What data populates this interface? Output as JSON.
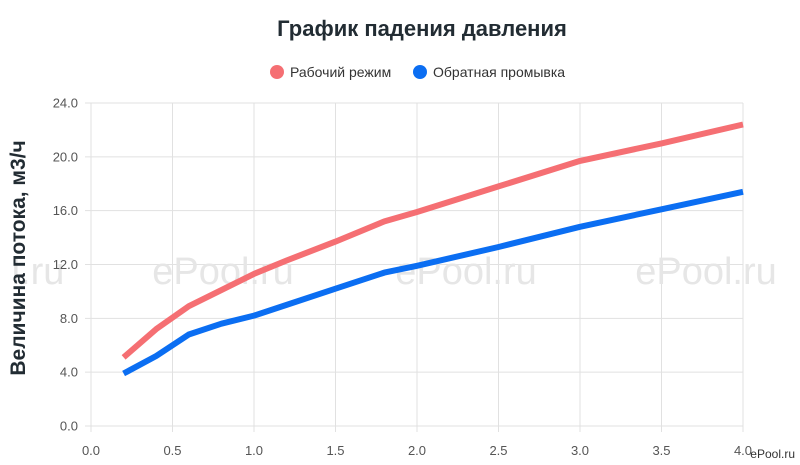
{
  "chart_data": {
    "type": "line",
    "title": "График падения давления",
    "ylabel": "Величина потока, м3/ч",
    "xlabel": "",
    "xlim": [
      0,
      4.0
    ],
    "ylim": [
      0,
      24
    ],
    "x_ticks": [
      "0.0",
      "0.5",
      "1.0",
      "1.5",
      "2.0",
      "2.5",
      "3.0",
      "3.5",
      "4.0"
    ],
    "y_ticks": [
      "0.0",
      "4.0",
      "8.0",
      "12.0",
      "16.0",
      "20.0",
      "24.0"
    ],
    "grid": true,
    "legend_position": "top-center",
    "series": [
      {
        "name": "Рабочий режим",
        "color": "#f56f73",
        "points": [
          {
            "x": 0.2,
            "y": 5.1
          },
          {
            "x": 0.4,
            "y": 7.2
          },
          {
            "x": 0.6,
            "y": 8.9
          },
          {
            "x": 0.8,
            "y": 10.1
          },
          {
            "x": 1.0,
            "y": 11.3
          },
          {
            "x": 1.2,
            "y": 12.3
          },
          {
            "x": 1.5,
            "y": 13.7
          },
          {
            "x": 1.8,
            "y": 15.2
          },
          {
            "x": 2.0,
            "y": 15.9
          },
          {
            "x": 2.5,
            "y": 17.8
          },
          {
            "x": 3.0,
            "y": 19.7
          },
          {
            "x": 3.5,
            "y": 21.0
          },
          {
            "x": 4.0,
            "y": 22.4
          }
        ]
      },
      {
        "name": "Обратная промывка",
        "color": "#0b6ef2",
        "points": [
          {
            "x": 0.2,
            "y": 3.9
          },
          {
            "x": 0.4,
            "y": 5.2
          },
          {
            "x": 0.6,
            "y": 6.8
          },
          {
            "x": 0.8,
            "y": 7.6
          },
          {
            "x": 1.0,
            "y": 8.2
          },
          {
            "x": 1.2,
            "y": 9.0
          },
          {
            "x": 1.5,
            "y": 10.2
          },
          {
            "x": 1.8,
            "y": 11.4
          },
          {
            "x": 2.0,
            "y": 11.9
          },
          {
            "x": 2.5,
            "y": 13.3
          },
          {
            "x": 3.0,
            "y": 14.8
          },
          {
            "x": 3.5,
            "y": 16.1
          },
          {
            "x": 4.0,
            "y": 17.4
          }
        ]
      }
    ],
    "watermarks": [
      "l.ru",
      "ePool.ru",
      "ePool.ru",
      "ePool.ru"
    ],
    "corner_logo": "ePool.ru"
  }
}
